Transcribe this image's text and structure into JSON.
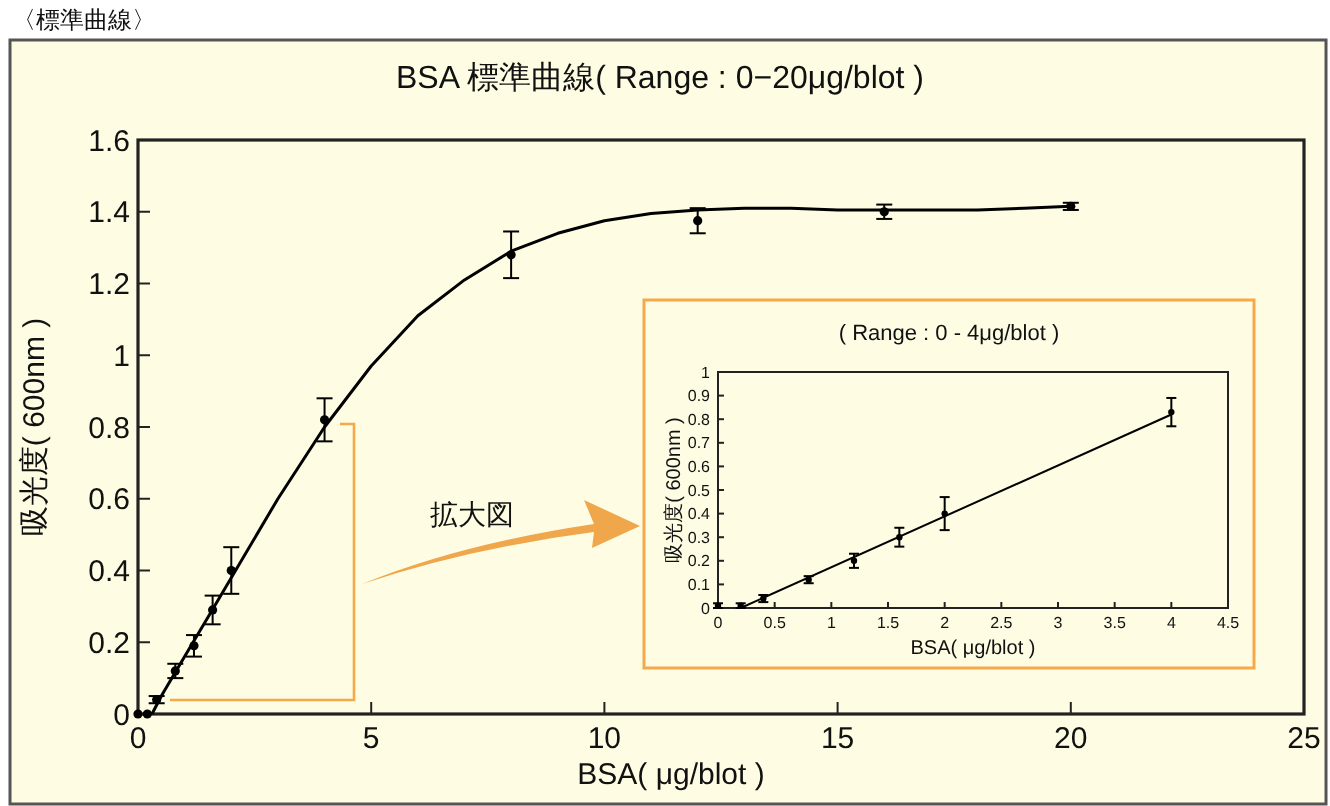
{
  "chart_data": [
    {
      "type": "scatter",
      "title": "BSA 標準曲線( Range : 0−20μg/blot )",
      "xlabel": "BSA( μg/blot )",
      "ylabel": "吸光度( 600nm )",
      "annotations": [
        "〈標準曲線〉",
        "拡大図"
      ],
      "xlim": [
        0,
        25
      ],
      "xticks": [
        0,
        5,
        10,
        15,
        20,
        25
      ],
      "ylim": [
        0,
        1.6
      ],
      "yticks": [
        0,
        0.2,
        0.4,
        0.6,
        0.8,
        1,
        1.2,
        1.4,
        1.6
      ],
      "grid": false,
      "marker": "circle",
      "series": [
        {
          "type": "scatter",
          "color": "#000000",
          "x": [
            0,
            0.2,
            0.4,
            0.8,
            1.2,
            1.6,
            2,
            4,
            8,
            12,
            16,
            20
          ],
          "values": [
            0,
            0,
            0.04,
            0.12,
            0.19,
            0.29,
            0.4,
            0.82,
            1.28,
            1.375,
            1.4,
            1.415
          ],
          "errors": [
            null,
            null,
            0.01,
            0.02,
            0.03,
            0.04,
            0.065,
            0.06,
            0.065,
            0.035,
            0.02,
            0.01
          ]
        },
        {
          "type": "line",
          "color": "#000000",
          "marker": "none",
          "x": [
            0.3,
            0.5,
            1,
            1.5,
            2,
            3,
            4,
            5,
            6,
            7,
            8,
            9,
            10,
            11,
            12,
            13,
            14,
            15,
            16,
            17,
            18,
            19,
            20
          ],
          "values": [
            0,
            0.05,
            0.16,
            0.27,
            0.38,
            0.6,
            0.8,
            0.97,
            1.11,
            1.21,
            1.29,
            1.34,
            1.375,
            1.395,
            1.405,
            1.41,
            1.41,
            1.405,
            1.405,
            1.405,
            1.405,
            1.41,
            1.415
          ]
        }
      ]
    },
    {
      "type": "scatter",
      "title": "( Range : 0 - 4μg/blot )",
      "xlabel": "BSA( μg/blot )",
      "ylabel": "吸光度( 600nm )",
      "xlim": [
        0,
        4.5
      ],
      "xticks": [
        0,
        0.5,
        1,
        1.5,
        2,
        2.5,
        3,
        3.5,
        4,
        4.5
      ],
      "ylim": [
        0,
        1
      ],
      "yticks": [
        0,
        0.1,
        0.2,
        0.3,
        0.4,
        0.5,
        0.6,
        0.7,
        0.8,
        0.9,
        1
      ],
      "grid": false,
      "marker": "circle",
      "series": [
        {
          "type": "scatter",
          "color": "#000000",
          "x": [
            0,
            0.2,
            0.4,
            0.8,
            1.2,
            1.6,
            2,
            4
          ],
          "values": [
            0.01,
            0.01,
            0.04,
            0.12,
            0.2,
            0.3,
            0.4,
            0.83
          ],
          "errors": [
            0.01,
            0.01,
            0.015,
            0.015,
            0.03,
            0.04,
            0.07,
            0.06
          ]
        },
        {
          "type": "line",
          "color": "#000000",
          "marker": "none",
          "x": [
            0.2,
            4
          ],
          "values": [
            0,
            0.82
          ]
        }
      ]
    }
  ]
}
